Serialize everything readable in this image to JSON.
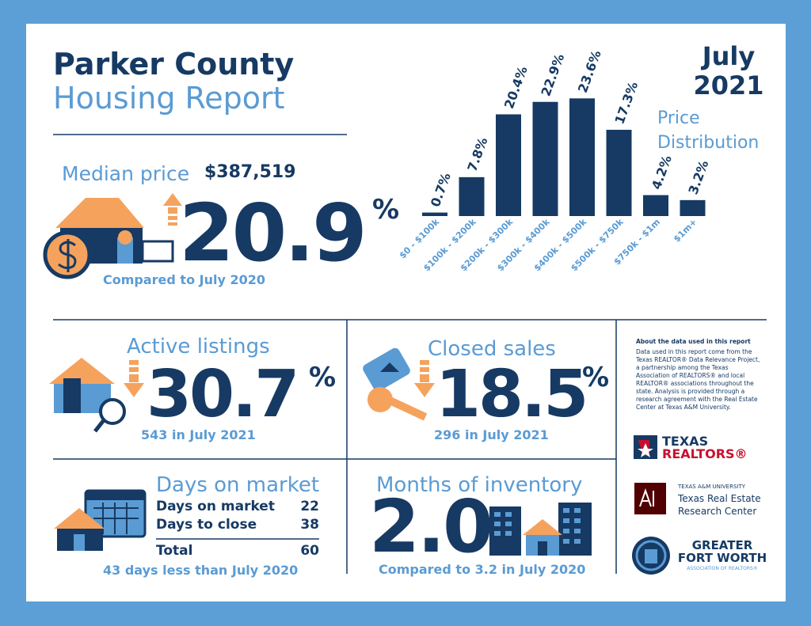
{
  "header": {
    "title": "Parker County",
    "subtitle": "Housing Report",
    "month": "July",
    "year": "2021"
  },
  "chart_data": {
    "type": "bar",
    "title": "Price Distribution",
    "categories": [
      "$0 - $100k",
      "$100k - $200k",
      "$200k - $300k",
      "$300k - $400k",
      "$400k - $500k",
      "$500k - $750k",
      "$750k - $1m",
      "$1m+"
    ],
    "values": [
      0.7,
      7.8,
      20.4,
      22.9,
      23.6,
      17.3,
      4.2,
      3.2
    ],
    "value_labels": [
      "0.7%",
      "7.8%",
      "20.4%",
      "22.9%",
      "23.6%",
      "17.3%",
      "4.2%",
      "3.2%"
    ],
    "color": "#163a63"
  },
  "median": {
    "label": "Median price",
    "price": "$387,519",
    "change": "20.9",
    "unit": "%",
    "note": "Compared to July 2020"
  },
  "active": {
    "title": "Active listings",
    "change": "30.7",
    "unit": "%",
    "note": "543 in July 2021"
  },
  "closed": {
    "title": "Closed sales",
    "change": "18.5",
    "unit": "%",
    "note": "296 in July 2021"
  },
  "days": {
    "title": "Days on market",
    "rows": [
      [
        "Days on market",
        "22"
      ],
      [
        "Days to close",
        "38"
      ]
    ],
    "total": [
      "Total",
      "60"
    ],
    "note": "43 days less than July 2020"
  },
  "inventory": {
    "title": "Months of inventory",
    "value": "2.0",
    "note": "Compared to 3.2 in July 2020"
  },
  "about": {
    "heading": "About the data used in this report",
    "text": "Data used in this report come from the Texas REALTOR® Data Relevance Project, a partnership among the Texas Association of REALTORS® and local REALTOR® associations throughout the state. Analysis is provided through a research agreement with the Real Estate Center at Texas A&M University."
  },
  "logos": {
    "texas_realtors": [
      "TEXAS",
      "REALTORS®"
    ],
    "tamu": {
      "university": "TEXAS A&M UNIVERSITY",
      "center": "Texas Real Estate Research Center"
    },
    "gfw": {
      "name": [
        "GREATER",
        "FORT WORTH"
      ],
      "assoc": "ASSOCIATION OF REALTORS®"
    }
  }
}
